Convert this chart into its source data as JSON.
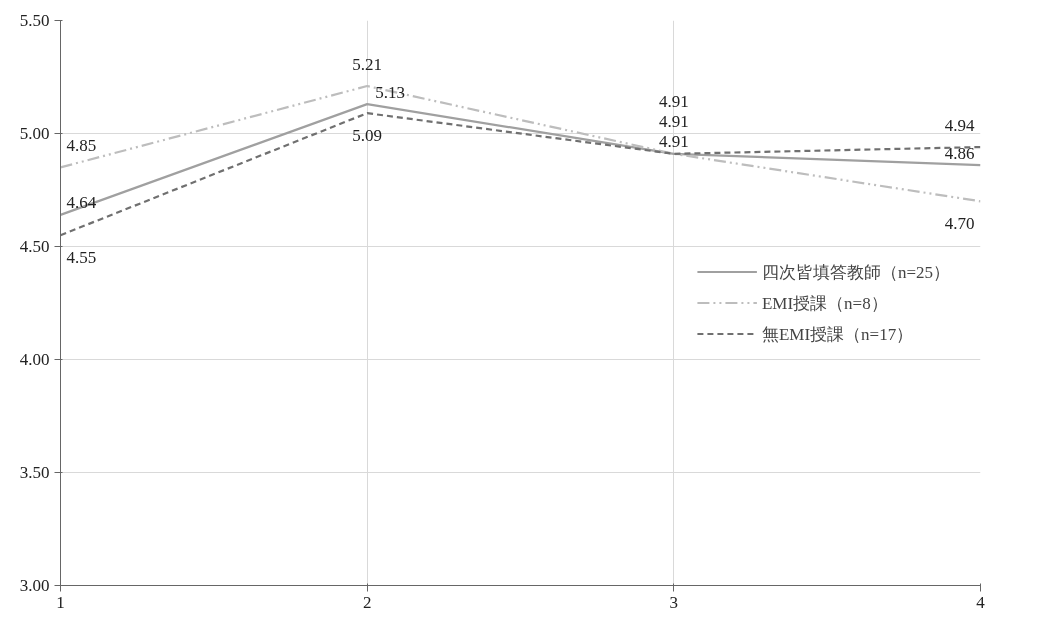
{
  "chart_data": {
    "type": "line",
    "x": [
      1,
      2,
      3,
      4
    ],
    "xlim": [
      1,
      4
    ],
    "xticks": [
      1,
      2,
      3,
      4
    ],
    "ylim": [
      3,
      5.5
    ],
    "yticks": [
      {
        "value": 3,
        "label": "3.00"
      },
      {
        "value": 3.5,
        "label": "3.50"
      },
      {
        "value": 4,
        "label": "4.00"
      },
      {
        "value": 4.5,
        "label": "4.50"
      },
      {
        "value": 5,
        "label": "5.00"
      },
      {
        "value": 5.5,
        "label": "5.50"
      }
    ],
    "grid": true,
    "legend": "right",
    "data_labels": true,
    "series": [
      {
        "name": "四次皆填答教師（n=25）",
        "color": "#a0a0a0",
        "line_style": "solid",
        "values": [
          4.64,
          5.13,
          4.91,
          4.86
        ]
      },
      {
        "name": "EMI授課（n=8）",
        "color": "#bdbdbd",
        "line_style": "dashdot",
        "values": [
          4.85,
          5.21,
          4.91,
          4.7
        ],
        "value_labels": [
          "4.85",
          "5.21",
          "4.91",
          "4.70"
        ]
      },
      {
        "name": "無EMI授課（n=17）",
        "color": "#707070",
        "line_style": "dashed",
        "values": [
          4.55,
          5.09,
          4.91,
          4.94
        ]
      }
    ]
  }
}
